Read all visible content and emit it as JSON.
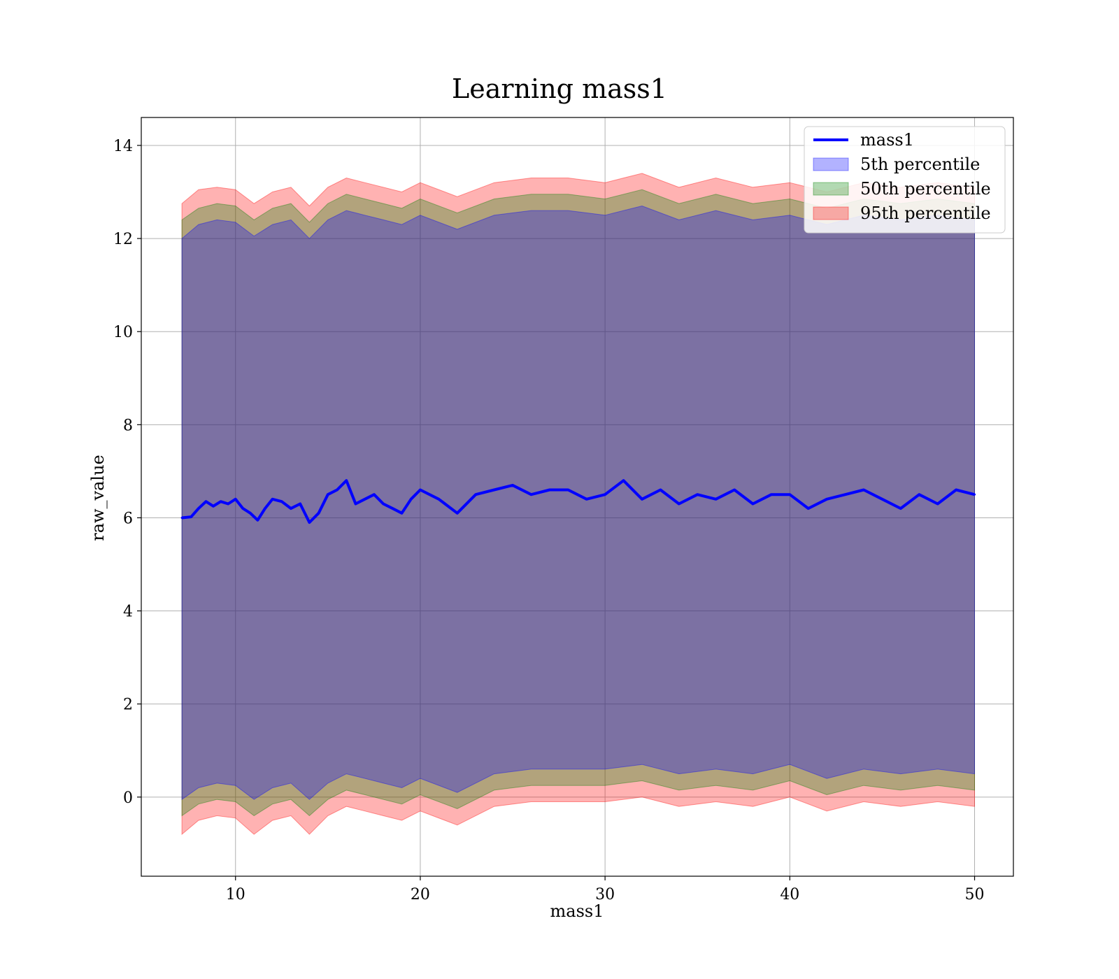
{
  "chart_data": {
    "type": "line",
    "title": "Learning mass1",
    "xlabel": "mass1",
    "ylabel": "raw_value",
    "xlim": [
      4.9,
      52.1
    ],
    "ylim": [
      -1.7,
      14.6
    ],
    "x_ticks": [
      10,
      20,
      30,
      40,
      50
    ],
    "y_ticks": [
      0,
      2,
      4,
      6,
      8,
      10,
      12,
      14
    ],
    "grid": true,
    "legend_position": "top-right",
    "series": [
      {
        "name": "mass1",
        "kind": "line",
        "color": "#0000ff",
        "x": [
          7.1,
          7.6,
          8.0,
          8.4,
          8.8,
          9.2,
          9.6,
          10.0,
          10.4,
          10.8,
          11.2,
          11.6,
          12.0,
          12.5,
          13.0,
          13.5,
          14.0,
          14.5,
          15.0,
          15.5,
          16.0,
          16.5,
          17.0,
          17.5,
          18.0,
          18.5,
          19.0,
          19.5,
          20.0,
          21.0,
          22.0,
          23.0,
          24.0,
          25.0,
          26.0,
          27.0,
          28.0,
          29.0,
          30.0,
          31.0,
          32.0,
          33.0,
          34.0,
          35.0,
          36.0,
          37.0,
          38.0,
          39.0,
          40.0,
          41.0,
          42.0,
          43.0,
          44.0,
          45.0,
          46.0,
          47.0,
          48.0,
          49.0,
          50.0
        ],
        "y": [
          6.0,
          6.02,
          6.2,
          6.35,
          6.25,
          6.35,
          6.3,
          6.4,
          6.2,
          6.1,
          5.95,
          6.2,
          6.4,
          6.35,
          6.2,
          6.3,
          5.9,
          6.1,
          6.5,
          6.6,
          6.8,
          6.3,
          6.4,
          6.5,
          6.3,
          6.2,
          6.1,
          6.4,
          6.6,
          6.4,
          6.1,
          6.5,
          6.6,
          6.7,
          6.5,
          6.6,
          6.6,
          6.4,
          6.5,
          6.8,
          6.4,
          6.6,
          6.3,
          6.5,
          6.4,
          6.6,
          6.3,
          6.5,
          6.5,
          6.2,
          6.4,
          6.5,
          6.6,
          6.4,
          6.2,
          6.5,
          6.3,
          6.6,
          6.5
        ]
      },
      {
        "name": "5th percentile",
        "kind": "band",
        "color": "#0000ff",
        "x": [
          7.1,
          8.0,
          9.0,
          10.0,
          11.0,
          12.0,
          13.0,
          14.0,
          15.0,
          16.0,
          17.0,
          18.0,
          19.0,
          20.0,
          22.0,
          24.0,
          26.0,
          28.0,
          30.0,
          32.0,
          34.0,
          36.0,
          38.0,
          40.0,
          42.0,
          44.0,
          46.0,
          48.0,
          50.0
        ],
        "lower": [
          -0.05,
          0.2,
          0.3,
          0.25,
          -0.05,
          0.2,
          0.3,
          -0.05,
          0.3,
          0.5,
          0.4,
          0.3,
          0.2,
          0.4,
          0.1,
          0.5,
          0.6,
          0.6,
          0.6,
          0.7,
          0.5,
          0.6,
          0.5,
          0.7,
          0.4,
          0.6,
          0.5,
          0.6,
          0.5
        ],
        "upper": [
          12.0,
          12.3,
          12.4,
          12.35,
          12.05,
          12.3,
          12.4,
          12.0,
          12.4,
          12.6,
          12.5,
          12.4,
          12.3,
          12.5,
          12.2,
          12.5,
          12.6,
          12.6,
          12.5,
          12.7,
          12.4,
          12.6,
          12.4,
          12.5,
          12.3,
          12.5,
          12.4,
          12.5,
          12.4
        ]
      },
      {
        "name": "50th percentile",
        "kind": "band",
        "color": "#008000",
        "x": [
          7.1,
          8.0,
          9.0,
          10.0,
          11.0,
          12.0,
          13.0,
          14.0,
          15.0,
          16.0,
          17.0,
          18.0,
          19.0,
          20.0,
          22.0,
          24.0,
          26.0,
          28.0,
          30.0,
          32.0,
          34.0,
          36.0,
          38.0,
          40.0,
          42.0,
          44.0,
          46.0,
          48.0,
          50.0
        ],
        "lower": [
          -0.4,
          -0.15,
          -0.05,
          -0.1,
          -0.4,
          -0.15,
          -0.05,
          -0.4,
          -0.05,
          0.15,
          0.05,
          -0.05,
          -0.15,
          0.05,
          -0.25,
          0.15,
          0.25,
          0.25,
          0.25,
          0.35,
          0.15,
          0.25,
          0.15,
          0.35,
          0.05,
          0.25,
          0.15,
          0.25,
          0.15
        ],
        "upper": [
          12.4,
          12.65,
          12.75,
          12.7,
          12.4,
          12.65,
          12.75,
          12.35,
          12.75,
          12.95,
          12.85,
          12.75,
          12.65,
          12.85,
          12.55,
          12.85,
          12.95,
          12.95,
          12.85,
          13.05,
          12.75,
          12.95,
          12.75,
          12.85,
          12.65,
          12.85,
          12.75,
          12.85,
          12.75
        ]
      },
      {
        "name": "95th percentile",
        "kind": "band",
        "color": "#ff0000",
        "x": [
          7.1,
          8.0,
          9.0,
          10.0,
          11.0,
          12.0,
          13.0,
          14.0,
          15.0,
          16.0,
          17.0,
          18.0,
          19.0,
          20.0,
          22.0,
          24.0,
          26.0,
          28.0,
          30.0,
          32.0,
          34.0,
          36.0,
          38.0,
          40.0,
          42.0,
          44.0,
          46.0,
          48.0,
          50.0
        ],
        "lower": [
          -0.8,
          -0.5,
          -0.4,
          -0.45,
          -0.8,
          -0.5,
          -0.4,
          -0.8,
          -0.4,
          -0.2,
          -0.3,
          -0.4,
          -0.5,
          -0.3,
          -0.6,
          -0.2,
          -0.1,
          -0.1,
          -0.1,
          0.0,
          -0.2,
          -0.1,
          -0.2,
          0.0,
          -0.3,
          -0.1,
          -0.2,
          -0.1,
          -0.2
        ],
        "upper": [
          12.75,
          13.05,
          13.1,
          13.05,
          12.75,
          13.0,
          13.1,
          12.7,
          13.1,
          13.3,
          13.2,
          13.1,
          13.0,
          13.2,
          12.9,
          13.2,
          13.3,
          13.3,
          13.2,
          13.4,
          13.1,
          13.3,
          13.1,
          13.2,
          13.0,
          13.2,
          13.1,
          13.2,
          13.1
        ]
      }
    ]
  }
}
